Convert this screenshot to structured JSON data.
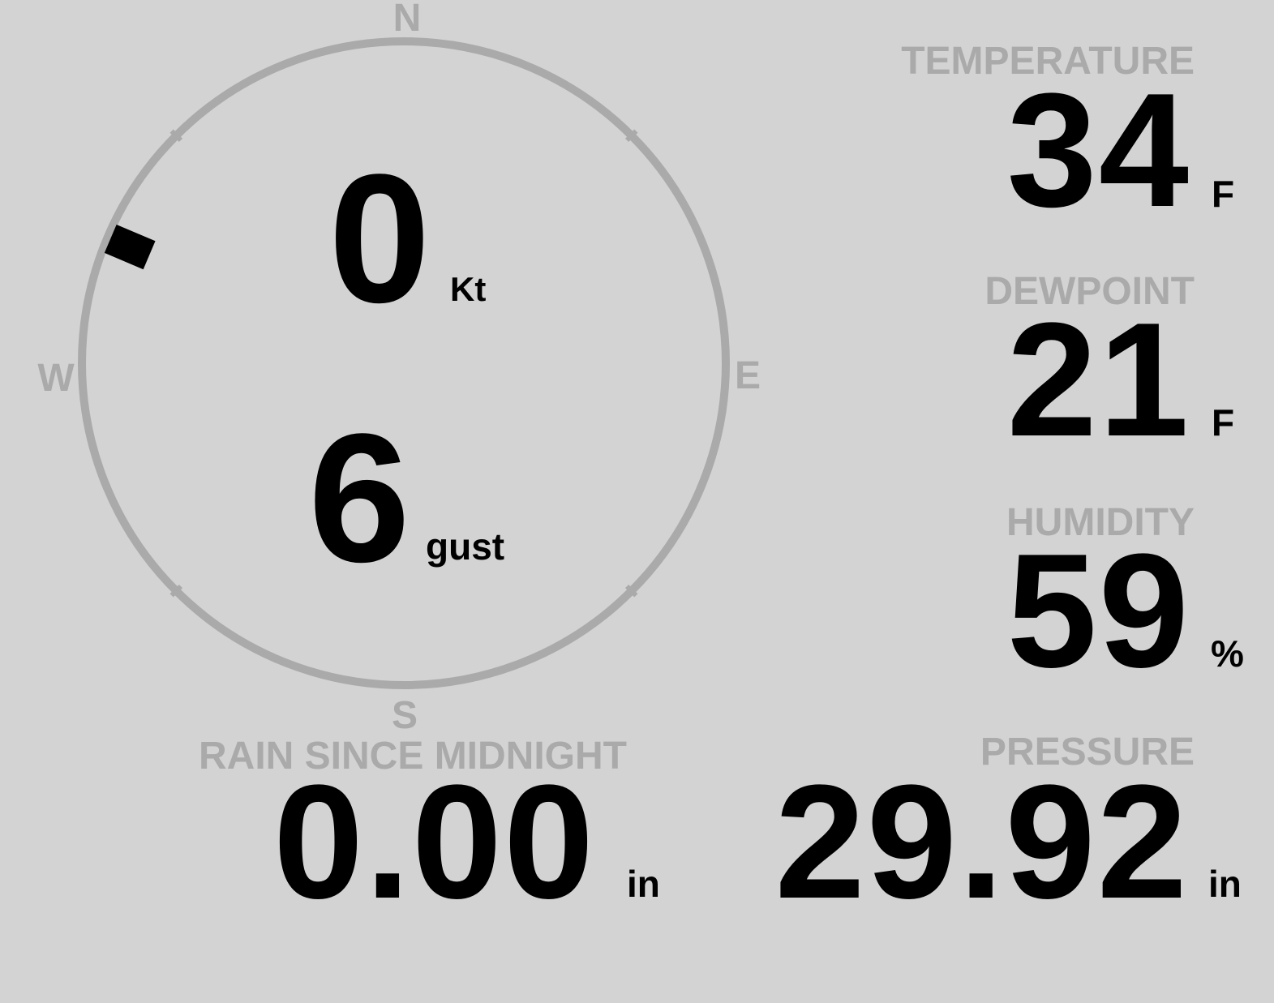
{
  "compass": {
    "north": "N",
    "east": "E",
    "south": "S",
    "west": "W",
    "wind_direction_deg": 293,
    "ring_color": "#aaaaaa"
  },
  "wind": {
    "speed": "0",
    "speed_unit": "Kt",
    "gust": "6",
    "gust_unit": "gust"
  },
  "temperature": {
    "label": "TEMPERATURE",
    "value": "34",
    "unit": "F"
  },
  "dewpoint": {
    "label": "DEWPOINT",
    "value": "21",
    "unit": "F"
  },
  "humidity": {
    "label": "HUMIDITY",
    "value": "59",
    "unit": "%"
  },
  "pressure": {
    "label": "PRESSURE",
    "value": "29.92",
    "unit": "in"
  },
  "rain": {
    "label": "RAIN SINCE MIDNIGHT",
    "value": "0.00",
    "unit": "in"
  }
}
